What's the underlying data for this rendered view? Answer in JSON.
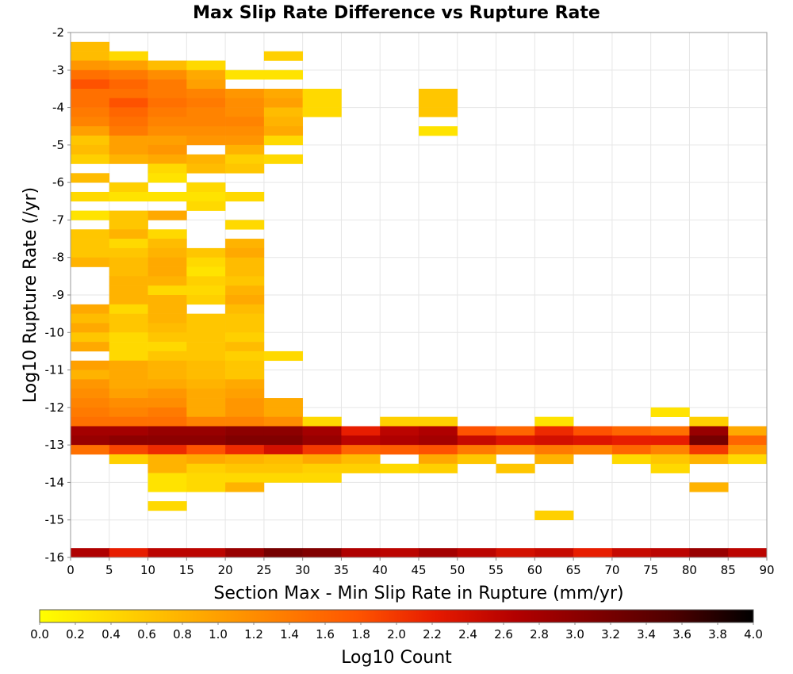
{
  "chart_data": {
    "type": "heatmap",
    "title": "Max Slip Rate Difference vs Rupture Rate",
    "xlabel": "Section Max - Min Slip Rate in Rupture (mm/yr)",
    "ylabel": "Log10 Rupture Rate (/yr)",
    "xlim": [
      0,
      90
    ],
    "ylim": [
      -16,
      -2
    ],
    "x_bin_width": 5,
    "y_bin_height": 0.25,
    "grid": true,
    "xticks": [
      "0",
      "5",
      "10",
      "15",
      "20",
      "25",
      "30",
      "35",
      "40",
      "45",
      "50",
      "55",
      "60",
      "65",
      "70",
      "75",
      "80",
      "85",
      "90"
    ],
    "yticks": [
      "-2",
      "-3",
      "-4",
      "-5",
      "-6",
      "-7",
      "-8",
      "-9",
      "-10",
      "-11",
      "-12",
      "-13",
      "-14",
      "-15",
      "-16"
    ],
    "colorbar": {
      "label": "Log10 Count",
      "min": 0.0,
      "max": 4.0,
      "ticks": [
        "0.0",
        "0.2",
        "0.4",
        "0.6",
        "0.8",
        "1.0",
        "1.2",
        "1.4",
        "1.6",
        "1.8",
        "2.0",
        "2.2",
        "2.4",
        "2.6",
        "2.8",
        "3.0",
        "3.2",
        "3.4",
        "3.6",
        "3.8",
        "4.0"
      ],
      "colors": [
        "#ffff00",
        "#ffd500",
        "#ffaa00",
        "#ff8000",
        "#ff5500",
        "#e61a00",
        "#b30000",
        "#800000",
        "#4d0000",
        "#000000"
      ]
    },
    "rows": [
      {
        "y": -2.375,
        "values": [
          0.7
        ]
      },
      {
        "y": -2.625,
        "values": [
          0.7,
          0.4,
          null,
          null,
          null,
          0.5
        ]
      },
      {
        "y": -2.875,
        "values": [
          1.1,
          1.0,
          0.7,
          0.4
        ]
      },
      {
        "y": -3.125,
        "values": [
          1.5,
          1.4,
          1.2,
          0.9,
          0.3,
          0.3
        ]
      },
      {
        "y": -3.375,
        "values": [
          1.8,
          1.6,
          1.4,
          1.0
        ]
      },
      {
        "y": -3.625,
        "values": [
          1.5,
          1.5,
          1.4,
          1.3,
          1.1,
          0.9,
          0.4,
          null,
          null,
          0.6
        ]
      },
      {
        "y": -3.875,
        "values": [
          1.5,
          1.8,
          1.5,
          1.4,
          1.2,
          1.0,
          0.4,
          null,
          null,
          0.6
        ]
      },
      {
        "y": -4.125,
        "values": [
          1.4,
          1.6,
          1.4,
          1.3,
          1.2,
          0.7,
          0.4,
          null,
          null,
          0.6
        ]
      },
      {
        "y": -4.375,
        "values": [
          1.3,
          1.5,
          1.3,
          1.3,
          1.3,
          0.8
        ]
      },
      {
        "y": -4.625,
        "values": [
          1.0,
          1.4,
          1.2,
          1.2,
          1.2,
          0.9,
          null,
          null,
          null,
          0.3
        ]
      },
      {
        "y": -4.875,
        "values": [
          0.6,
          1.0,
          1.0,
          1.1,
          1.1,
          0.4
        ]
      },
      {
        "y": -5.125,
        "values": [
          0.7,
          1.0,
          1.1,
          null,
          0.8
        ]
      },
      {
        "y": -5.375,
        "values": [
          0.5,
          0.8,
          0.9,
          0.8,
          0.5,
          0.4
        ]
      },
      {
        "y": -5.625,
        "values": [
          null,
          null,
          0.4,
          0.7,
          0.6
        ]
      },
      {
        "y": -5.875,
        "values": [
          0.7,
          null,
          0.3
        ]
      },
      {
        "y": -6.125,
        "values": [
          null,
          0.5,
          null,
          0.4
        ]
      },
      {
        "y": -6.375,
        "values": [
          0.4,
          0.3,
          0.3,
          0.3,
          0.4
        ]
      },
      {
        "y": -6.625,
        "values": [
          null,
          null,
          null,
          0.4
        ]
      },
      {
        "y": -6.875,
        "values": [
          0.3,
          0.6,
          0.9
        ]
      },
      {
        "y": -7.125,
        "values": [
          null,
          0.6,
          null,
          null,
          0.4
        ]
      },
      {
        "y": -7.375,
        "values": [
          0.6,
          0.8,
          0.4
        ]
      },
      {
        "y": -7.625,
        "values": [
          0.6,
          0.4,
          0.7,
          null,
          0.8
        ]
      },
      {
        "y": -7.875,
        "values": [
          0.6,
          0.6,
          0.8,
          0.6,
          0.9
        ]
      },
      {
        "y": -8.125,
        "values": [
          0.8,
          0.7,
          0.9,
          0.4,
          0.7
        ]
      },
      {
        "y": -8.375,
        "values": [
          null,
          0.7,
          0.9,
          0.3,
          0.7
        ]
      },
      {
        "y": -8.625,
        "values": [
          null,
          0.8,
          0.8,
          0.5,
          0.6
        ]
      },
      {
        "y": -8.875,
        "values": [
          null,
          0.8,
          0.4,
          0.4,
          0.8
        ]
      },
      {
        "y": -9.125,
        "values": [
          null,
          0.8,
          0.8,
          0.5,
          0.9
        ]
      },
      {
        "y": -9.375,
        "values": [
          0.9,
          0.4,
          0.8,
          null,
          0.7
        ]
      },
      {
        "y": -9.625,
        "values": [
          0.7,
          0.6,
          0.8,
          0.6,
          0.6
        ]
      },
      {
        "y": -9.875,
        "values": [
          0.9,
          0.6,
          0.7,
          0.6,
          0.6
        ]
      },
      {
        "y": -10.125,
        "values": [
          0.6,
          0.4,
          0.6,
          0.6,
          0.5
        ]
      },
      {
        "y": -10.375,
        "values": [
          0.9,
          0.4,
          0.4,
          0.6,
          0.7
        ]
      },
      {
        "y": -10.625,
        "values": [
          null,
          0.4,
          0.6,
          0.6,
          0.5,
          0.4
        ]
      },
      {
        "y": -10.875,
        "values": [
          1.0,
          0.9,
          0.8,
          0.7,
          0.6
        ]
      },
      {
        "y": -11.125,
        "values": [
          0.8,
          0.9,
          0.8,
          0.7,
          0.6
        ]
      },
      {
        "y": -11.375,
        "values": [
          1.1,
          0.9,
          0.9,
          0.8,
          0.9
        ]
      },
      {
        "y": -11.625,
        "values": [
          1.2,
          1.0,
          1.1,
          0.9,
          1.0
        ]
      },
      {
        "y": -11.875,
        "values": [
          1.3,
          1.2,
          1.2,
          0.9,
          1.1,
          0.9
        ]
      },
      {
        "y": -12.125,
        "values": [
          1.4,
          1.3,
          1.4,
          0.9,
          1.1,
          0.9,
          null,
          null,
          null,
          null,
          null,
          null,
          null,
          null,
          null,
          0.3
        ]
      },
      {
        "y": -12.375,
        "values": [
          1.5,
          1.5,
          1.5,
          1.3,
          1.3,
          1.2,
          0.4,
          null,
          0.5,
          0.5,
          null,
          null,
          0.3,
          null,
          null,
          null,
          0.5
        ]
      },
      {
        "y": -12.625,
        "values": [
          2.8,
          2.8,
          2.9,
          2.9,
          3.0,
          3.0,
          2.8,
          2.2,
          2.6,
          2.7,
          1.8,
          1.6,
          2.1,
          1.8,
          1.6,
          1.5,
          2.9,
          0.9
        ]
      },
      {
        "y": -12.875,
        "values": [
          2.9,
          3.0,
          3.0,
          3.0,
          3.1,
          3.1,
          2.9,
          2.6,
          2.7,
          2.8,
          2.5,
          2.3,
          2.4,
          2.3,
          2.2,
          2.2,
          3.2,
          1.6
        ]
      },
      {
        "y": -13.125,
        "values": [
          1.5,
          1.9,
          2.1,
          1.8,
          2.1,
          2.4,
          2.0,
          1.6,
          1.7,
          1.8,
          1.4,
          1.2,
          1.4,
          1.3,
          1.6,
          1.3,
          2.0,
          1.1
        ]
      },
      {
        "y": -13.375,
        "values": [
          null,
          0.5,
          0.8,
          0.9,
          0.8,
          0.7,
          0.9,
          0.7,
          null,
          0.9,
          0.6,
          null,
          0.8,
          null,
          0.4,
          0.6,
          0.8,
          0.4
        ]
      },
      {
        "y": -13.625,
        "values": [
          null,
          null,
          0.8,
          0.5,
          0.6,
          0.6,
          0.5,
          0.5,
          0.4,
          0.5,
          null,
          0.6,
          null,
          null,
          null,
          0.4
        ]
      },
      {
        "y": -13.875,
        "values": [
          null,
          null,
          0.3,
          0.4,
          0.4,
          0.4,
          0.4
        ]
      },
      {
        "y": -14.125,
        "values": [
          null,
          null,
          0.3,
          0.4,
          0.8,
          null,
          null,
          null,
          null,
          null,
          null,
          null,
          null,
          null,
          null,
          null,
          0.8
        ]
      },
      {
        "y": -14.375,
        "values": []
      },
      {
        "y": -14.625,
        "values": [
          null,
          null,
          0.4
        ]
      },
      {
        "y": -14.875,
        "values": [
          null,
          null,
          null,
          null,
          null,
          null,
          null,
          null,
          null,
          null,
          null,
          null,
          0.5
        ]
      },
      {
        "y": -15.875,
        "values": [
          2.7,
          2.2,
          2.6,
          2.6,
          2.9,
          3.2,
          3.1,
          2.7,
          2.6,
          2.8,
          2.6,
          2.4,
          2.5,
          2.2,
          2.5,
          2.6,
          2.9,
          2.6
        ]
      }
    ]
  }
}
